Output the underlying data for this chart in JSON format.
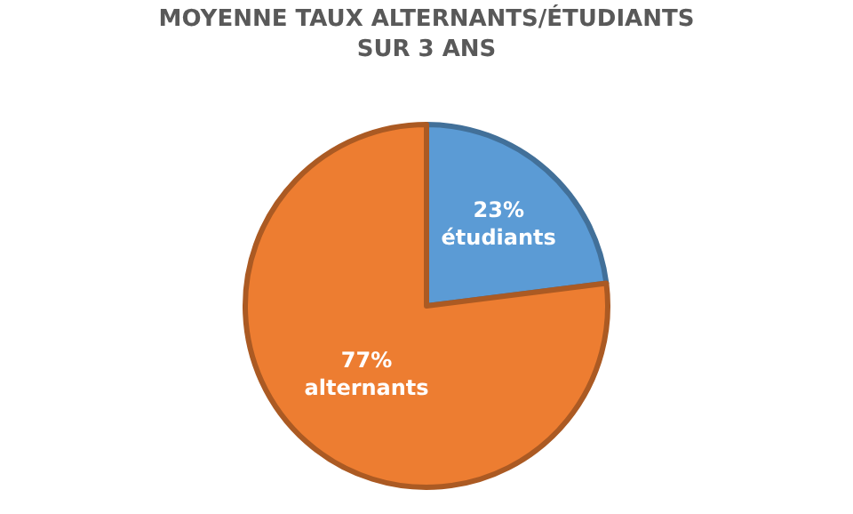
{
  "chart_data": {
    "type": "pie",
    "title": "MOYENNE TAUX ALTERNANTS/ÉTUDIANTS\nSUR 3 ANS",
    "categories": [
      "étudiants",
      "alternants"
    ],
    "values": [
      23,
      77
    ],
    "value_labels": [
      "23%",
      "77%"
    ],
    "colors": [
      "#5b9bd5",
      "#ed7d31"
    ],
    "legend": false
  }
}
